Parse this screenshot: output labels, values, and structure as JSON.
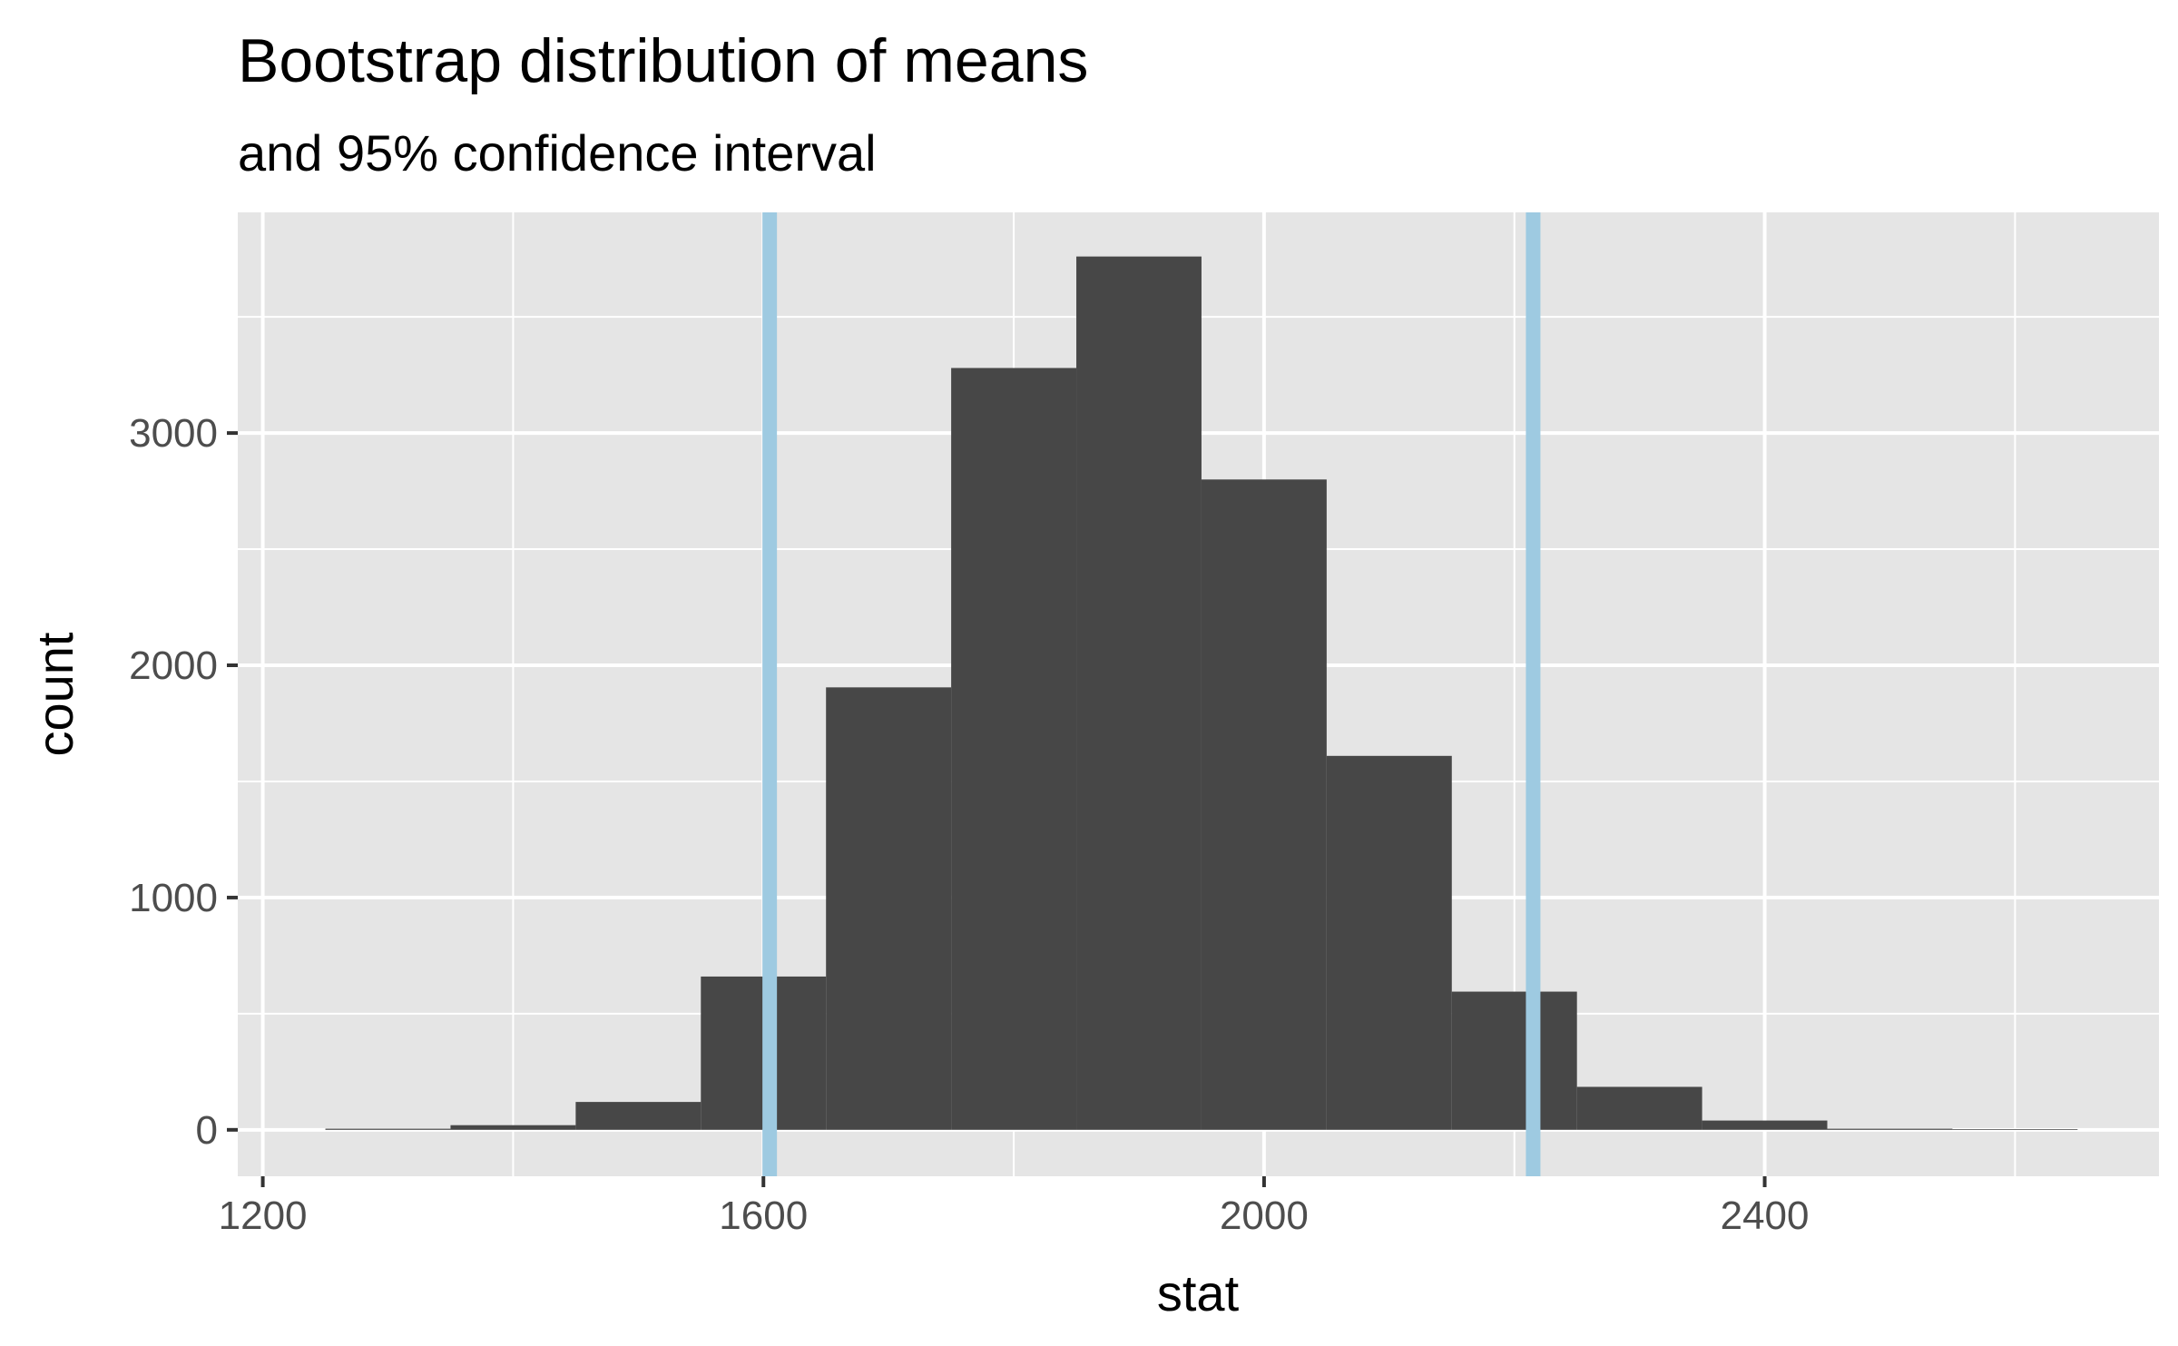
{
  "chart_data": {
    "type": "bar",
    "title": "Bootstrap distribution of means",
    "subtitle": "and 95% confidence interval",
    "xlabel": "stat",
    "ylabel": "count",
    "bin_width": 100,
    "bins": [
      {
        "x0": 1250,
        "x1": 1350,
        "count": 5
      },
      {
        "x0": 1350,
        "x1": 1450,
        "count": 20
      },
      {
        "x0": 1450,
        "x1": 1550,
        "count": 120
      },
      {
        "x0": 1550,
        "x1": 1650,
        "count": 660
      },
      {
        "x0": 1650,
        "x1": 1750,
        "count": 1905
      },
      {
        "x0": 1750,
        "x1": 1850,
        "count": 3280
      },
      {
        "x0": 1850,
        "x1": 1950,
        "count": 3760
      },
      {
        "x0": 1950,
        "x1": 2050,
        "count": 2800
      },
      {
        "x0": 2050,
        "x1": 2150,
        "count": 1610
      },
      {
        "x0": 2150,
        "x1": 2250,
        "count": 595
      },
      {
        "x0": 2250,
        "x1": 2350,
        "count": 185
      },
      {
        "x0": 2350,
        "x1": 2450,
        "count": 40
      },
      {
        "x0": 2450,
        "x1": 2550,
        "count": 5
      },
      {
        "x0": 2550,
        "x1": 2650,
        "count": 3
      }
    ],
    "confidence_interval": {
      "lower": 1605,
      "upper": 2215,
      "color": "#9ecae1"
    },
    "xlim": [
      1180,
      2715
    ],
    "ylim": [
      -200,
      3950
    ],
    "x_ticks": [
      1200,
      1600,
      2000,
      2400
    ],
    "y_ticks": [
      0,
      1000,
      2000,
      3000
    ],
    "grid": true,
    "colors": {
      "panel_background": "#e5e5e5",
      "grid": "#ffffff",
      "bar_fill": "#474747",
      "tick_text": "#4d4d4d"
    }
  }
}
